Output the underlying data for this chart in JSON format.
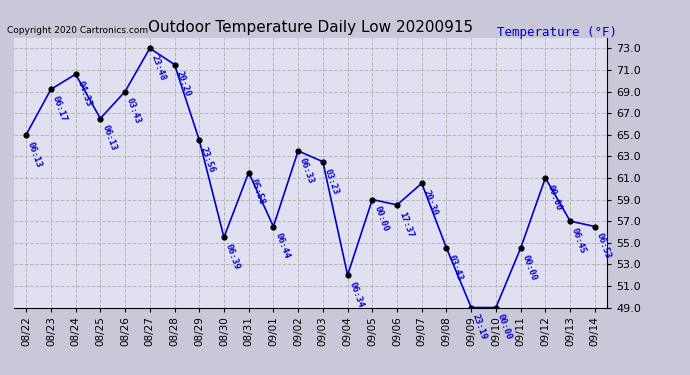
{
  "title": "Outdoor Temperature Daily Low 20200915",
  "ylabel": "Temperature (°F)",
  "copyright_text": "Copyright 2020 Cartronics.com",
  "background_color": "#d8d8e8",
  "plot_background_color": "#e8e8f8",
  "line_color": "#0000cc",
  "marker_color": "#000000",
  "text_color": "#0000cc",
  "grid_color": "#aaaaaa",
  "dates": [
    "2020-08-22",
    "2020-08-23",
    "2020-08-24",
    "2020-08-25",
    "2020-08-26",
    "2020-08-27",
    "2020-08-28",
    "2020-08-29",
    "2020-08-30",
    "2020-08-31",
    "2020-09-01",
    "2020-09-02",
    "2020-09-03",
    "2020-09-04",
    "2020-09-05",
    "2020-09-06",
    "2020-09-07",
    "2020-09-08",
    "2020-09-09",
    "2020-09-10",
    "2020-09-11",
    "2020-09-12",
    "2020-09-13",
    "2020-09-14"
  ],
  "temperatures": [
    65.0,
    69.2,
    70.6,
    66.5,
    69.0,
    73.0,
    71.5,
    64.5,
    55.5,
    61.5,
    56.5,
    63.5,
    62.5,
    52.0,
    59.0,
    58.5,
    60.5,
    54.5,
    49.0,
    49.0,
    54.5,
    61.0,
    57.0,
    56.5
  ],
  "times": [
    "06:13",
    "06:17",
    "04:33",
    "06:13",
    "03:43",
    "23:48",
    "20:20",
    "23:56",
    "06:39",
    "05:58",
    "06:44",
    "06:33",
    "03:23",
    "06:34",
    "00:00",
    "17:37",
    "20:30",
    "03:43",
    "23:19",
    "00:00",
    "00:00",
    "00:00",
    "06:45",
    "06:53"
  ],
  "ylim": [
    49.0,
    74.0
  ],
  "yticks": [
    49.0,
    51.0,
    53.0,
    55.0,
    57.0,
    59.0,
    61.0,
    63.0,
    65.0,
    67.0,
    69.0,
    71.0,
    73.0
  ]
}
